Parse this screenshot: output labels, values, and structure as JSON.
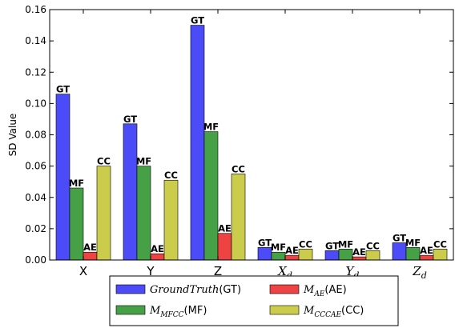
{
  "chart_data": {
    "type": "bar",
    "ylabel": "SD Value",
    "ylim": [
      0,
      0.16
    ],
    "yticks": [
      "0.00",
      "0.02",
      "0.04",
      "0.06",
      "0.08",
      "0.10",
      "0.12",
      "0.14",
      "0.16"
    ],
    "categories": [
      {
        "main": "X",
        "sub": ""
      },
      {
        "main": "Y",
        "sub": ""
      },
      {
        "main": "Z",
        "sub": ""
      },
      {
        "main": "X",
        "sub": "d"
      },
      {
        "main": "Y",
        "sub": "d"
      },
      {
        "main": "Z",
        "sub": "d"
      }
    ],
    "series": [
      {
        "key": "GT",
        "label": "GT",
        "color": "#4b4bf7",
        "values": [
          0.106,
          0.087,
          0.15,
          0.008,
          0.006,
          0.011
        ]
      },
      {
        "key": "MF",
        "label": "MF",
        "color": "#46a046",
        "values": [
          0.046,
          0.06,
          0.082,
          0.005,
          0.007,
          0.008
        ]
      },
      {
        "key": "AE",
        "label": "AE",
        "color": "#ee4343",
        "values": [
          0.005,
          0.004,
          0.017,
          0.003,
          0.002,
          0.003
        ]
      },
      {
        "key": "CC",
        "label": "CC",
        "color": "#cccc4c",
        "values": [
          0.06,
          0.051,
          0.055,
          0.007,
          0.006,
          0.007
        ]
      }
    ],
    "legend": {
      "placement": "bottom",
      "entries": [
        {
          "series": "GT",
          "math_main": "GroundTruth",
          "math_sub": "",
          "suffix": "(GT)"
        },
        {
          "series": "AE",
          "math_main": "M",
          "math_sub": "AE",
          "suffix": "(AE)"
        },
        {
          "series": "MF",
          "math_main": "M",
          "math_sub": "MFCC",
          "suffix": "(MF)"
        },
        {
          "series": "CC",
          "math_main": "M",
          "math_sub": "CCCAE",
          "suffix": "(CC)"
        }
      ]
    },
    "grid": false
  }
}
